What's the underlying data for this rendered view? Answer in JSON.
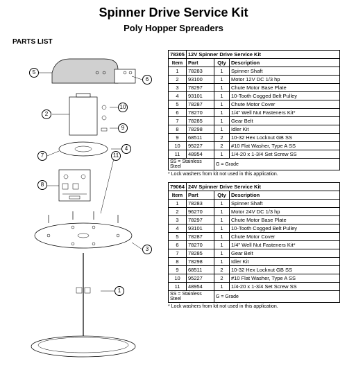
{
  "title": "Spinner Drive Service Kit",
  "subtitle": "Poly Hopper Spreaders",
  "parts_list_label": "PARTS LIST",
  "headers": {
    "item": "Item",
    "part": "Part",
    "qty": "Qty",
    "desc": "Description"
  },
  "footer_left": "SS = Stainless Steel",
  "footer_right": "G = Grade",
  "footnote": "* Lock washers from kit not used in this application.",
  "callouts": {
    "c1": "1",
    "c2": "2",
    "c3": "3",
    "c4": "4",
    "c5": "5",
    "c6": "6",
    "c7": "7",
    "c8": "8",
    "c9": "9",
    "c10": "10",
    "c11": "11"
  },
  "kit12": {
    "num": "78305",
    "title": "12V Spinner Drive Service Kit",
    "rows": [
      {
        "item": "1",
        "part": "78283",
        "qty": "1",
        "desc": "Spinner Shaft"
      },
      {
        "item": "2",
        "part": "93100",
        "qty": "1",
        "desc": "Motor 12V DC 1/3 hp"
      },
      {
        "item": "3",
        "part": "78297",
        "qty": "1",
        "desc": "Chute Motor Base Plate"
      },
      {
        "item": "4",
        "part": "93101",
        "qty": "1",
        "desc": "10-Tooth Cogged Belt Pulley"
      },
      {
        "item": "5",
        "part": "78287",
        "qty": "1",
        "desc": "Chute Motor Cover"
      },
      {
        "item": "6",
        "part": "78270",
        "qty": "1",
        "desc": "1/4\" Well Nut Fasteners Kit*"
      },
      {
        "item": "7",
        "part": "78285",
        "qty": "1",
        "desc": "Gear Belt"
      },
      {
        "item": "8",
        "part": "78298",
        "qty": "1",
        "desc": "Idler Kit"
      },
      {
        "item": "9",
        "part": "68511",
        "qty": "2",
        "desc": "10-32 Hex Locknut GB SS"
      },
      {
        "item": "10",
        "part": "95227",
        "qty": "2",
        "desc": "#10 Flat Washer, Type A SS"
      },
      {
        "item": "11",
        "part": "48954",
        "qty": "1",
        "desc": "1/4-20 x 1-3/4 Set Screw SS"
      }
    ]
  },
  "kit24": {
    "num": "79064",
    "title": "24V Spinner Drive Service Kit",
    "rows": [
      {
        "item": "1",
        "part": "78283",
        "qty": "1",
        "desc": "Spinner Shaft"
      },
      {
        "item": "2",
        "part": "96270",
        "qty": "1",
        "desc": "Motor 24V DC 1/3 hp"
      },
      {
        "item": "3",
        "part": "78297",
        "qty": "1",
        "desc": "Chute Motor Base Plate"
      },
      {
        "item": "4",
        "part": "93101",
        "qty": "1",
        "desc": "10-Tooth Cogged Belt Pulley"
      },
      {
        "item": "5",
        "part": "78287",
        "qty": "1",
        "desc": "Chute Motor Cover"
      },
      {
        "item": "6",
        "part": "78270",
        "qty": "1",
        "desc": "1/4\" Well Nut Fasteners Kit*"
      },
      {
        "item": "7",
        "part": "78285",
        "qty": "1",
        "desc": "Gear Belt"
      },
      {
        "item": "8",
        "part": "78298",
        "qty": "1",
        "desc": "Idler Kit"
      },
      {
        "item": "9",
        "part": "68511",
        "qty": "2",
        "desc": "10-32 Hex Locknut GB SS"
      },
      {
        "item": "10",
        "part": "95227",
        "qty": "2",
        "desc": "#10 Flat Washer, Type A SS"
      },
      {
        "item": "11",
        "part": "48954",
        "qty": "1",
        "desc": "1/4-20 x 1-3/4 Set Screw SS"
      }
    ]
  }
}
